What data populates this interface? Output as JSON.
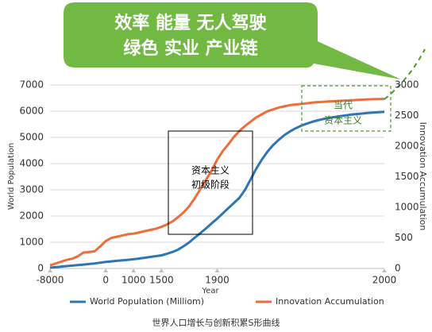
{
  "chart_data": {
    "type": "line",
    "callout": [
      "效率 能量 无人驾驶",
      "绿色 实业 产业链"
    ],
    "annotation_box": [
      "资本主义",
      "初级阶段"
    ],
    "annotation_dashed": [
      "当代",
      "资本主义"
    ],
    "ylabel": "World Population",
    "y2label": "Innovation Accumulation",
    "xlabel": "Year",
    "caption": "世界人口增长与创新积累S形曲线",
    "categories": [
      "-8000",
      null,
      null,
      null,
      null,
      null,
      null,
      null,
      null,
      null,
      "0",
      null,
      null,
      null,
      null,
      "1000",
      null,
      null,
      null,
      null,
      "1500",
      null,
      null,
      null,
      null,
      null,
      null,
      null,
      null,
      null,
      "1900",
      null,
      null,
      null,
      null,
      null,
      null,
      null,
      null,
      null,
      null,
      null,
      null,
      null,
      null,
      null,
      null,
      null,
      null,
      null,
      null,
      null,
      null,
      null,
      null,
      null,
      null,
      null,
      null,
      null,
      "2000"
    ],
    "ylim": [
      0,
      7000
    ],
    "yticks": [
      0,
      1000,
      2000,
      3000,
      4000,
      5000,
      6000,
      7000
    ],
    "y2lim": [
      0,
      3000
    ],
    "y2ticks": [
      0,
      500,
      1000,
      1500,
      2000,
      2500,
      3000
    ],
    "grid": true,
    "series": [
      {
        "name": "World Population (Milliom)",
        "color": "#2e75b6",
        "values": [
          30,
          50,
          70,
          90,
          110,
          130,
          150,
          170,
          190,
          220,
          250,
          270,
          290,
          310,
          330,
          350,
          380,
          410,
          440,
          470,
          500,
          560,
          630,
          720,
          850,
          1000,
          1180,
          1350,
          1530,
          1720,
          1900,
          2100,
          2300,
          2500,
          2700,
          3000,
          3400,
          3800,
          4150,
          4450,
          4700,
          4900,
          5080,
          5220,
          5340,
          5440,
          5520,
          5590,
          5650,
          5700,
          5740,
          5780,
          5810,
          5840,
          5870,
          5890,
          5910,
          5930,
          5950,
          5960,
          5980
        ]
      },
      {
        "name": "Innovation Accumulation",
        "color": "#ed6d3d",
        "axis": "y2",
        "values": [
          50,
          80,
          110,
          140,
          160,
          200,
          260,
          270,
          280,
          360,
          450,
          500,
          520,
          540,
          560,
          570,
          590,
          610,
          630,
          650,
          680,
          720,
          770,
          840,
          920,
          1020,
          1150,
          1300,
          1450,
          1600,
          1780,
          1920,
          2030,
          2150,
          2250,
          2330,
          2400,
          2470,
          2520,
          2570,
          2600,
          2630,
          2650,
          2670,
          2680,
          2690,
          2700,
          2710,
          2720,
          2725,
          2730,
          2735,
          2740,
          2745,
          2750,
          2755,
          2760,
          2765,
          2768,
          2770,
          2772
        ]
      }
    ]
  }
}
